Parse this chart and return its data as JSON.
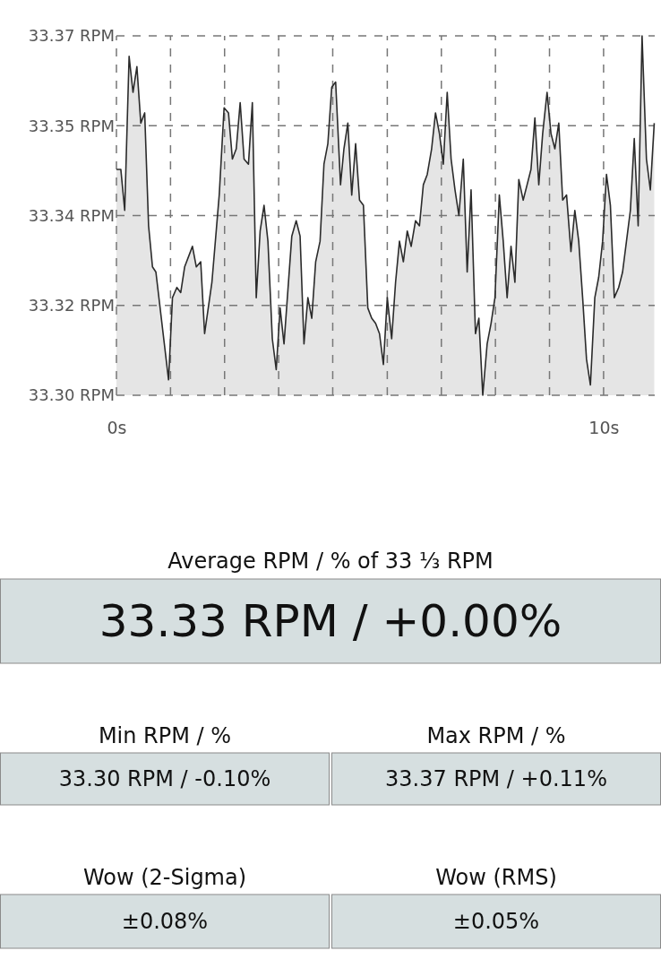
{
  "chart_data": [
    {
      "type": "area",
      "color": "#2b2b2b",
      "grid": true,
      "line_style": "solid",
      "x": [
        0,
        0.09,
        0.17,
        0.26,
        0.34,
        0.42,
        0.5,
        0.58,
        0.66,
        0.74,
        0.81,
        1.07,
        1.15,
        1.24,
        1.32,
        1.4,
        1.56,
        1.64,
        1.73,
        1.81,
        1.96,
        2.11,
        2.21,
        2.3,
        2.38,
        2.46,
        2.54,
        2.62,
        2.71,
        2.79,
        2.87,
        2.95,
        3.03,
        3.11,
        3.2,
        3.28,
        3.36,
        3.44,
        3.6,
        3.69,
        3.77,
        3.85,
        3.93,
        4.01,
        4.09,
        4.18,
        4.26,
        4.34,
        4.42,
        4.5,
        4.6,
        4.67,
        4.75,
        4.83,
        4.91,
        4.99,
        5.07,
        5.16,
        5.24,
        5.32,
        5.4,
        5.48,
        5.56,
        5.65,
        5.73,
        5.81,
        5.89,
        5.97,
        6.05,
        6.14,
        6.22,
        6.3,
        6.38,
        6.47,
        6.55,
        6.63,
        6.71,
        6.79,
        6.87,
        6.95,
        7.03,
        7.12,
        7.2,
        7.28,
        7.37,
        7.44,
        7.52,
        7.61,
        7.69,
        7.77,
        7.86,
        7.94,
        8.02,
        8.1,
        8.18,
        8.26,
        8.35,
        8.43,
        8.51,
        8.59,
        8.67,
        8.75,
        8.84,
        8.92,
        9.0,
        9.08,
        9.16,
        9.24,
        9.33,
        9.41,
        9.49,
        9.57,
        9.65,
        9.73,
        9.82,
        9.9,
        9.98,
        10.06,
        10.14,
        10.22,
        10.31,
        10.39,
        10.47,
        10.55,
        10.63,
        10.71,
        10.79,
        10.88,
        10.96,
        11.04
      ],
      "values": [
        33.344,
        33.344,
        33.336,
        33.366,
        33.359,
        33.364,
        33.353,
        33.355,
        33.333,
        33.325,
        33.324,
        33.303,
        33.319,
        33.321,
        33.32,
        33.325,
        33.329,
        33.325,
        33.326,
        33.312,
        33.322,
        33.339,
        33.356,
        33.355,
        33.346,
        33.348,
        33.357,
        33.346,
        33.345,
        33.357,
        33.319,
        33.332,
        33.337,
        33.33,
        33.311,
        33.305,
        33.317,
        33.31,
        33.331,
        33.334,
        33.331,
        33.31,
        33.319,
        33.315,
        33.326,
        33.33,
        33.345,
        33.349,
        33.36,
        33.361,
        33.341,
        33.348,
        33.353,
        33.339,
        33.349,
        33.338,
        33.337,
        33.317,
        33.315,
        33.314,
        33.312,
        33.306,
        33.319,
        33.311,
        33.322,
        33.33,
        33.326,
        33.332,
        33.329,
        33.334,
        33.333,
        33.341,
        33.343,
        33.348,
        33.355,
        33.351,
        33.345,
        33.359,
        33.346,
        33.34,
        33.335,
        33.346,
        33.324,
        33.34,
        33.312,
        33.315,
        33.3,
        33.31,
        33.314,
        33.319,
        33.339,
        33.33,
        33.319,
        33.329,
        33.322,
        33.342,
        33.338,
        33.341,
        33.344,
        33.354,
        33.341,
        33.351,
        33.359,
        33.351,
        33.348,
        33.353,
        33.338,
        33.339,
        33.328,
        33.336,
        33.33,
        33.319,
        33.307,
        33.302,
        33.319,
        33.323,
        33.33,
        33.343,
        33.337,
        33.319,
        33.321,
        33.324,
        33.33,
        33.336,
        33.35,
        33.333,
        33.37,
        33.346,
        33.34,
        33.353
      ],
      "xlim": [
        0,
        11.05
      ],
      "ylim": [
        33.3,
        33.37
      ],
      "xticks": [
        {
          "value": 0,
          "label": "0s"
        },
        {
          "value": 1.11,
          "label": null
        },
        {
          "value": 2.22,
          "label": null
        },
        {
          "value": 3.33,
          "label": null
        },
        {
          "value": 4.44,
          "label": null
        },
        {
          "value": 5.56,
          "label": null
        },
        {
          "value": 6.67,
          "label": null
        },
        {
          "value": 7.78,
          "label": null
        },
        {
          "value": 8.89,
          "label": null
        },
        {
          "value": 10,
          "label": "10s"
        }
      ],
      "yticks": [
        {
          "value": 33.3,
          "label": "33.30 RPM"
        },
        {
          "value": 33.3175,
          "label": "33.32 RPM"
        },
        {
          "value": 33.335,
          "label": "33.34 RPM"
        },
        {
          "value": 33.3525,
          "label": "33.35 RPM"
        },
        {
          "value": 33.37,
          "label": "33.37 RPM"
        }
      ]
    },
    {
      "type": "other",
      "annotations": [
        "Average RPM / % of 33 ⅓ RPM",
        "33.33 RPM / +0.00%",
        "Min RPM / %",
        "33.30 RPM / -0.10%",
        "Max RPM / %",
        "33.37 RPM / +0.11%",
        "Wow (2-Sigma)",
        "±0.08%",
        "Wow (RMS)",
        "±0.05%"
      ]
    }
  ]
}
